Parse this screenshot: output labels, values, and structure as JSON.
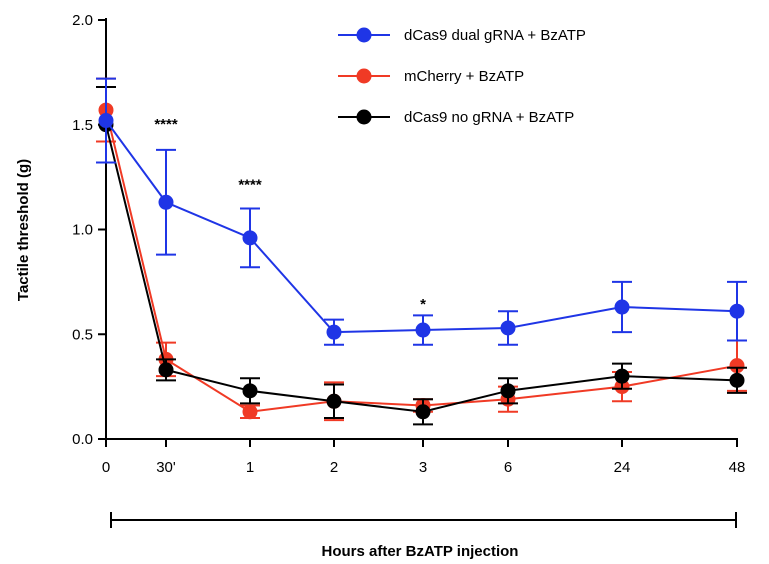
{
  "chart_data": {
    "type": "line",
    "title": "",
    "xlabel": "Hours after BzATP injection",
    "ylabel": "Tactile threshold (g)",
    "ylim": [
      0.0,
      2.0
    ],
    "yticks": [
      "0.0",
      "0.5",
      "1.0",
      "1.5",
      "2.0"
    ],
    "categories": [
      "0",
      "30'",
      "1",
      "2",
      "3",
      "6",
      "24",
      "48"
    ],
    "legend_position": "top-right",
    "series": [
      {
        "name": "dCas9 dual gRNA + BzATP",
        "color": "#1f35e6",
        "values": [
          1.52,
          1.13,
          0.96,
          0.51,
          0.52,
          0.53,
          0.63,
          0.61
        ],
        "errors": [
          0.2,
          0.25,
          0.14,
          0.06,
          0.07,
          0.08,
          0.12,
          0.14
        ]
      },
      {
        "name": "mCherry + BzATP",
        "color": "#f03a25",
        "values": [
          1.57,
          0.38,
          0.13,
          0.18,
          0.16,
          0.19,
          0.25,
          0.35
        ],
        "errors": [
          0.15,
          0.08,
          0.03,
          0.09,
          0.03,
          0.06,
          0.07,
          0.12
        ]
      },
      {
        "name": "dCas9 no gRNA + BzATP",
        "color": "#000000",
        "values": [
          1.5,
          0.33,
          0.23,
          0.18,
          0.13,
          0.23,
          0.3,
          0.28
        ],
        "errors": [
          0.18,
          0.05,
          0.06,
          0.08,
          0.06,
          0.06,
          0.06,
          0.06
        ]
      }
    ],
    "annotations": [
      {
        "category": "30'",
        "text": "****",
        "value": 1.48
      },
      {
        "category": "1",
        "text": "****",
        "value": 1.19
      },
      {
        "category": "3",
        "text": "*",
        "value": 0.62
      }
    ]
  }
}
